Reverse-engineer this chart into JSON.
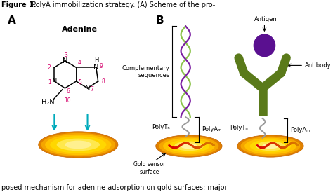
{
  "title_bold": "Figure 1.",
  "title_rest": " PolyA immobilization strategy. (A) Scheme of the pro-",
  "subtitle": "posed mechanism for adenine adsorption on gold surfaces: major",
  "label_A": "A",
  "label_B": "B",
  "adenine_title": "Adenine",
  "h2n_label": "H₂N",
  "gold_sensor_label": "Gold sensor\nsurface",
  "complementary_label": "Complementary\nsequences",
  "polyt_label1": "PolyTₙ",
  "polya_label1": "PolyAₘ",
  "polyt_label2": "PolyTₙ",
  "polya_label2": "PolyAₘ",
  "antigen_label": "Antigen",
  "antibody_label": "Antibody",
  "bg_color": "#ffffff",
  "arrow_color": "#00aabb",
  "number_color": "#d4006a",
  "gold_color1": "#ffd700",
  "gold_color2": "#e08000",
  "dna_purple": "#7b1fa2",
  "dna_green": "#8bc34a",
  "antibody_color": "#5a7a1a",
  "antigen_color": "#5a1090",
  "polyA_color": "#cc2200",
  "polyT_color": "#999999",
  "n_color": "#000000"
}
